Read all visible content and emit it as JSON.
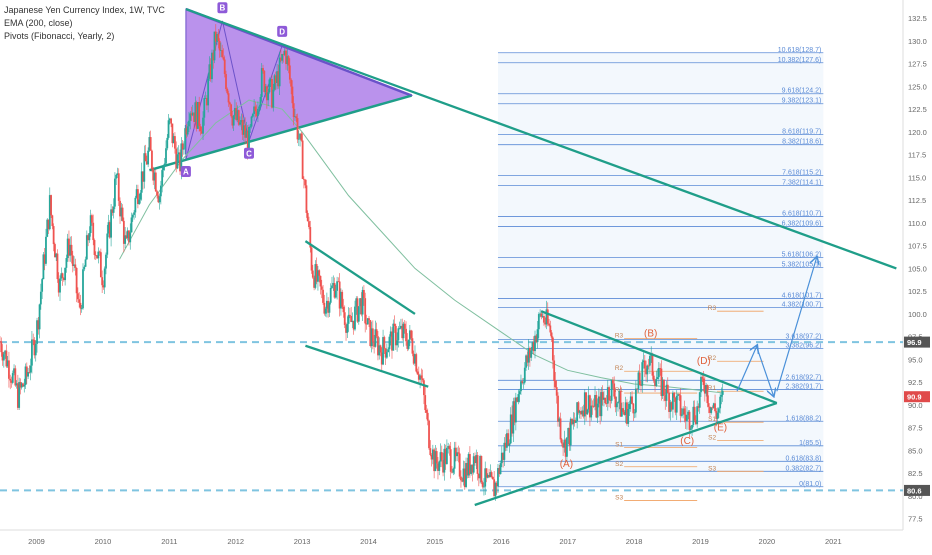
{
  "legend": {
    "line1": "Japanese Yen Currency Index, 1W, TVC",
    "line2": "EMA (200, close)",
    "line3": "Pivots (Fibonacci, Yearly, 2)"
  },
  "colors": {
    "up": "#26a69a",
    "down": "#ef5350",
    "ema": "#7fbf9f",
    "trend": "#1f9e89",
    "pattern_fill": "#a36ee6",
    "pattern_line": "#6b52c9",
    "fib": "#5b8bd6",
    "pivot": "#f0a060",
    "dashed_level": "#7fc4e0",
    "arrow": "#4a90d9",
    "price_badge": "#e04a4a"
  },
  "chart_data": {
    "type": "candlestick",
    "title": "Japanese Yen Currency Index, 1W, TVC",
    "y_axis": {
      "range": [
        76.25,
        134.5
      ],
      "ticks": [
        "77.5",
        "80.0",
        "82.5",
        "85.0",
        "87.5",
        "90.0",
        "92.5",
        "95.0",
        "97.5",
        "100.0",
        "102.5",
        "105.0",
        "107.5",
        "110.0",
        "112.5",
        "115.0",
        "117.5",
        "120.0",
        "122.5",
        "125.0",
        "127.5",
        "130.0",
        "132.5"
      ]
    },
    "x_axis": {
      "range": [
        2008.45,
        2022.05
      ],
      "ticks": [
        "2009",
        "2010",
        "2011",
        "2012",
        "2013",
        "2014",
        "2015",
        "2016",
        "2017",
        "2018",
        "2019",
        "2020",
        "2021"
      ]
    },
    "price_path": [
      [
        2008.45,
        97.0
      ],
      [
        2008.6,
        94.0
      ],
      [
        2008.72,
        91.0
      ],
      [
        2008.85,
        93.0
      ],
      [
        2009.0,
        98.0
      ],
      [
        2009.2,
        112.0
      ],
      [
        2009.35,
        103.0
      ],
      [
        2009.5,
        108.0
      ],
      [
        2009.65,
        100.0
      ],
      [
        2009.8,
        110.0
      ],
      [
        2010.0,
        104.0
      ],
      [
        2010.2,
        115.0
      ],
      [
        2010.35,
        107.0
      ],
      [
        2010.5,
        113.0
      ],
      [
        2010.7,
        118.0
      ],
      [
        2010.85,
        113.0
      ],
      [
        2011.0,
        121.0
      ],
      [
        2011.15,
        116.0
      ],
      [
        2011.3,
        123.0
      ],
      [
        2011.5,
        121.0
      ],
      [
        2011.7,
        130.5
      ],
      [
        2011.85,
        126.0
      ],
      [
        2011.95,
        122.0
      ],
      [
        2012.2,
        119.0
      ],
      [
        2012.4,
        126.0
      ],
      [
        2012.55,
        124.0
      ],
      [
        2012.75,
        129.0
      ],
      [
        2012.85,
        124.0
      ],
      [
        2013.0,
        117.0
      ],
      [
        2013.15,
        105.0
      ],
      [
        2013.35,
        101.0
      ],
      [
        2013.5,
        103.5
      ],
      [
        2013.7,
        98.5
      ],
      [
        2013.9,
        101.5
      ],
      [
        2014.0,
        98.0
      ],
      [
        2014.2,
        96.0
      ],
      [
        2014.45,
        98.0
      ],
      [
        2014.65,
        97.0
      ],
      [
        2014.8,
        92.5
      ],
      [
        2014.9,
        87.0
      ],
      [
        2015.0,
        83.5
      ],
      [
        2015.2,
        84.5
      ],
      [
        2015.45,
        82.5
      ],
      [
        2015.6,
        84.5
      ],
      [
        2015.75,
        81.5
      ],
      [
        2015.9,
        80.8
      ],
      [
        2016.0,
        84.0
      ],
      [
        2016.15,
        88.0
      ],
      [
        2016.3,
        93.0
      ],
      [
        2016.45,
        96.0
      ],
      [
        2016.6,
        100.0
      ],
      [
        2016.75,
        98.0
      ],
      [
        2016.85,
        89.0
      ],
      [
        2016.95,
        85.5
      ],
      [
        2017.1,
        88.0
      ],
      [
        2017.25,
        90.5
      ],
      [
        2017.45,
        89.5
      ],
      [
        2017.65,
        92.0
      ],
      [
        2017.85,
        89.0
      ],
      [
        2018.0,
        90.5
      ],
      [
        2018.2,
        95.0
      ],
      [
        2018.35,
        93.0
      ],
      [
        2018.5,
        91.0
      ],
      [
        2018.65,
        90.0
      ],
      [
        2018.8,
        88.5
      ],
      [
        2018.95,
        89.5
      ],
      [
        2019.05,
        93.0
      ],
      [
        2019.15,
        90.0
      ],
      [
        2019.25,
        89.0
      ],
      [
        2019.35,
        90.9
      ]
    ],
    "ema_200": [
      [
        2010.25,
        106.0
      ],
      [
        2010.7,
        112.0
      ],
      [
        2011.2,
        117.0
      ],
      [
        2011.7,
        121.0
      ],
      [
        2012.2,
        123.5
      ],
      [
        2012.7,
        122.5
      ],
      [
        2013.0,
        120.0
      ],
      [
        2013.3,
        117.0
      ],
      [
        2013.7,
        113.0
      ],
      [
        2014.2,
        109.0
      ],
      [
        2014.7,
        105.0
      ],
      [
        2015.3,
        101.5
      ],
      [
        2015.9,
        98.5
      ],
      [
        2016.5,
        95.5
      ],
      [
        2017.0,
        93.8
      ],
      [
        2017.5,
        93.0
      ],
      [
        2018.0,
        92.3
      ],
      [
        2018.5,
        92.0
      ],
      [
        2019.0,
        91.6
      ],
      [
        2019.35,
        91.3
      ]
    ],
    "harmonic_top": {
      "triangle": [
        [
          2011.25,
          133.5
        ],
        [
          2011.25,
          117.0
        ],
        [
          2014.65,
          124.0
        ]
      ],
      "upper_edge": [
        [
          2011.25,
          133.5
        ],
        [
          2014.65,
          124.0
        ]
      ],
      "lower_edge": [
        [
          2010.7,
          115.8
        ],
        [
          2014.65,
          124.0
        ]
      ],
      "zigzag": [
        [
          2011.25,
          117.0
        ],
        [
          2011.8,
          132.2
        ],
        [
          2012.2,
          119.0
        ],
        [
          2012.7,
          129.5
        ],
        [
          2014.65,
          124.0
        ]
      ],
      "points": [
        {
          "label": "A",
          "x": 2011.25,
          "y": 115.6
        },
        {
          "label": "B",
          "x": 2011.8,
          "y": 133.6
        },
        {
          "label": "C",
          "x": 2012.2,
          "y": 117.6
        },
        {
          "label": "D",
          "x": 2012.7,
          "y": 131.0
        }
      ]
    },
    "trendlines": [
      {
        "from": [
          2011.25,
          133.5
        ],
        "to": [
          2021.95,
          105.0
        ]
      },
      {
        "from": [
          2013.05,
          108.0
        ],
        "to": [
          2014.7,
          100.0
        ]
      },
      {
        "from": [
          2013.05,
          96.5
        ],
        "to": [
          2014.9,
          92.0
        ]
      },
      {
        "from": [
          2016.6,
          100.3
        ],
        "to": [
          2020.15,
          90.2
        ]
      },
      {
        "from": [
          2015.6,
          79.0
        ],
        "to": [
          2020.15,
          90.2
        ]
      }
    ],
    "triangle_points": [
      {
        "label": "(A)",
        "x": 2016.98,
        "y": 83.2
      },
      {
        "label": "(B)",
        "x": 2018.25,
        "y": 97.5
      },
      {
        "label": "(C)",
        "x": 2018.8,
        "y": 85.7
      },
      {
        "label": "(D)",
        "x": 2019.05,
        "y": 94.5
      },
      {
        "label": "(E)",
        "x": 2019.3,
        "y": 87.2
      }
    ],
    "fib_levels": [
      {
        "label": "10.618(128.7)",
        "value": 128.7
      },
      {
        "label": "10.382(127.6)",
        "value": 127.6
      },
      {
        "label": "9.618(124.2)",
        "value": 124.2
      },
      {
        "label": "9.382(123.1)",
        "value": 123.1
      },
      {
        "label": "8.618(119.7)",
        "value": 119.7
      },
      {
        "label": "8.382(118.6)",
        "value": 118.6
      },
      {
        "label": "7.618(115.2)",
        "value": 115.2
      },
      {
        "label": "7.382(114.1)",
        "value": 114.1
      },
      {
        "label": "6.618(110.7)",
        "value": 110.7
      },
      {
        "label": "6.382(109.6)",
        "value": 109.6
      },
      {
        "label": "5.618(106.2)",
        "value": 106.2
      },
      {
        "label": "5.382(105.1)",
        "value": 105.1
      },
      {
        "label": "4.618(101.7)",
        "value": 101.7
      },
      {
        "label": "4.382(100.7)",
        "value": 100.7
      },
      {
        "label": "3.618(97.2)",
        "value": 97.2
      },
      {
        "label": "3.382(96.2)",
        "value": 96.2
      },
      {
        "label": "2.618(92.7)",
        "value": 92.7
      },
      {
        "label": "2.382(91.7)",
        "value": 91.7
      },
      {
        "label": "1.618(88.2)",
        "value": 88.2
      },
      {
        "label": "1(85.5)",
        "value": 85.5
      },
      {
        "label": "0.618(83.8)",
        "value": 83.8
      },
      {
        "label": "0.382(82.7)",
        "value": 82.7
      },
      {
        "label": "0(81.0)",
        "value": 81.0
      }
    ],
    "fib_x_range": [
      2015.95,
      2020.85
    ],
    "pivots": [
      {
        "label": "R3",
        "value": 100.3,
        "x0": 2019.25,
        "x1": 2019.95
      },
      {
        "label": "R2",
        "value": 94.8,
        "x0": 2019.25,
        "x1": 2019.95
      },
      {
        "label": "R1",
        "value": 91.5,
        "x0": 2019.25,
        "x1": 2019.95
      },
      {
        "label": "S1",
        "value": 88.1,
        "x0": 2019.25,
        "x1": 2019.95
      },
      {
        "label": "S2",
        "value": 86.1,
        "x0": 2019.25,
        "x1": 2019.95
      },
      {
        "label": "S3",
        "value": 82.7,
        "x0": 2019.25,
        "x1": 2019.95
      },
      {
        "label": "R3",
        "value": 97.3,
        "x0": 2017.85,
        "x1": 2018.95
      },
      {
        "label": "R2",
        "value": 93.7,
        "x0": 2017.85,
        "x1": 2018.95
      },
      {
        "label": "R1",
        "value": 91.3,
        "x0": 2017.85,
        "x1": 2018.95
      },
      {
        "label": "S1",
        "value": 85.3,
        "x0": 2017.85,
        "x1": 2018.95
      },
      {
        "label": "S2",
        "value": 83.2,
        "x0": 2017.85,
        "x1": 2018.95
      },
      {
        "label": "S3",
        "value": 79.5,
        "x0": 2017.85,
        "x1": 2018.95
      }
    ],
    "dashed_levels": [
      {
        "value": 96.9,
        "label": "96.9"
      },
      {
        "value": 80.6,
        "label": "80.6"
      }
    ],
    "forecast_arrows": [
      [
        [
          2019.55,
          91.5
        ],
        [
          2019.85,
          96.5
        ]
      ],
      [
        [
          2019.85,
          96.3
        ],
        [
          2020.1,
          91.0
        ]
      ],
      [
        [
          2020.15,
          91.5
        ],
        [
          2020.75,
          106.2
        ]
      ]
    ],
    "current_price": {
      "value": 90.9,
      "label": "90.9"
    }
  }
}
